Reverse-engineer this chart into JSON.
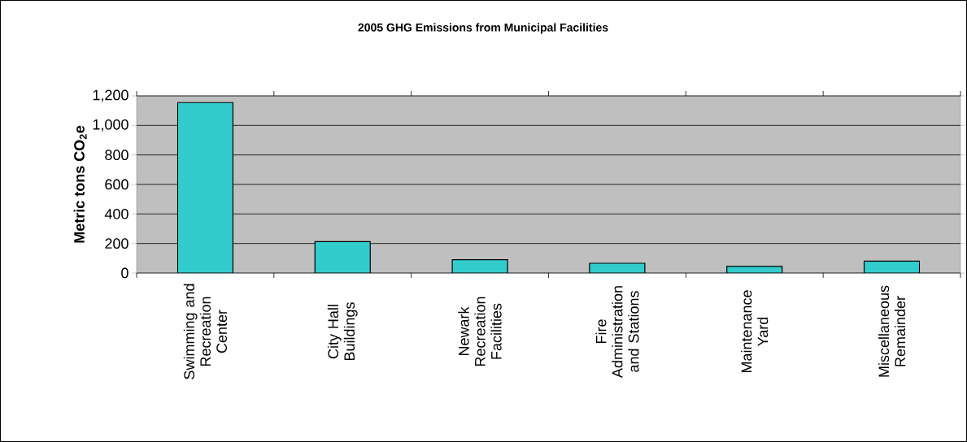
{
  "chart_data": {
    "type": "bar",
    "title": "2005 GHG Emissions from Municipal Facilities",
    "ylabel": "Metric tons CO$_{2}$e",
    "categories": [
      "Swimming and Recreation Center",
      "City Hall Buildings",
      "Newark Recreation Facilities",
      "Fire Administration and Stations",
      "Maintenance Yard",
      "Miscellaneous Remainder"
    ],
    "values": [
      1155,
      213,
      90,
      66,
      45,
      81
    ],
    "color": "#33cccc",
    "ylim": [
      0,
      1200
    ],
    "yticks": [
      0,
      200,
      400,
      600,
      800,
      {
        "value": 1000,
        "label": "1,000"
      },
      {
        "value": 1200,
        "label": "1,200"
      }
    ],
    "grid": "y"
  }
}
